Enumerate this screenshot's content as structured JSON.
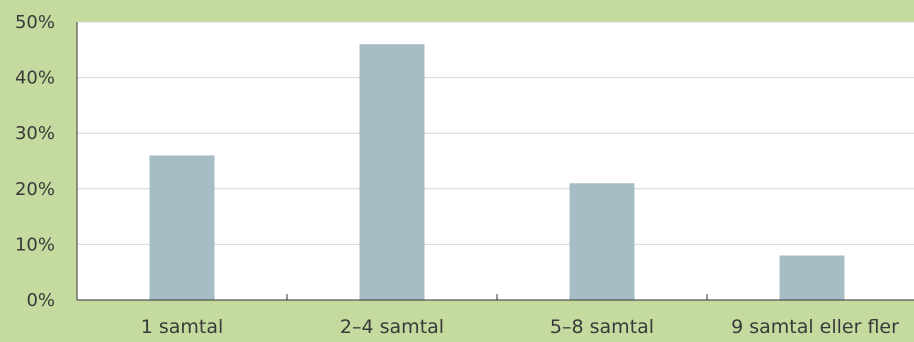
{
  "chart_data": {
    "type": "bar",
    "categories": [
      "1 samtal",
      "2–4 samtal",
      "5–8 samtal",
      "9 samtal eller fler"
    ],
    "values": [
      26,
      46,
      21,
      8
    ],
    "ylim": [
      0,
      50
    ],
    "yticks": [
      0,
      10,
      20,
      30,
      40,
      50
    ],
    "ytick_labels": [
      "0%",
      "10%",
      "20%",
      "30%",
      "40%",
      "50%"
    ],
    "grid": true,
    "legend": "none",
    "colors": {
      "background": "#c5da9e",
      "plot_area": "#ffffff",
      "bar": "#a6bdc6",
      "gridline": "#d6d6d6",
      "axis": "#333333",
      "text": "#3a3a3a"
    }
  }
}
